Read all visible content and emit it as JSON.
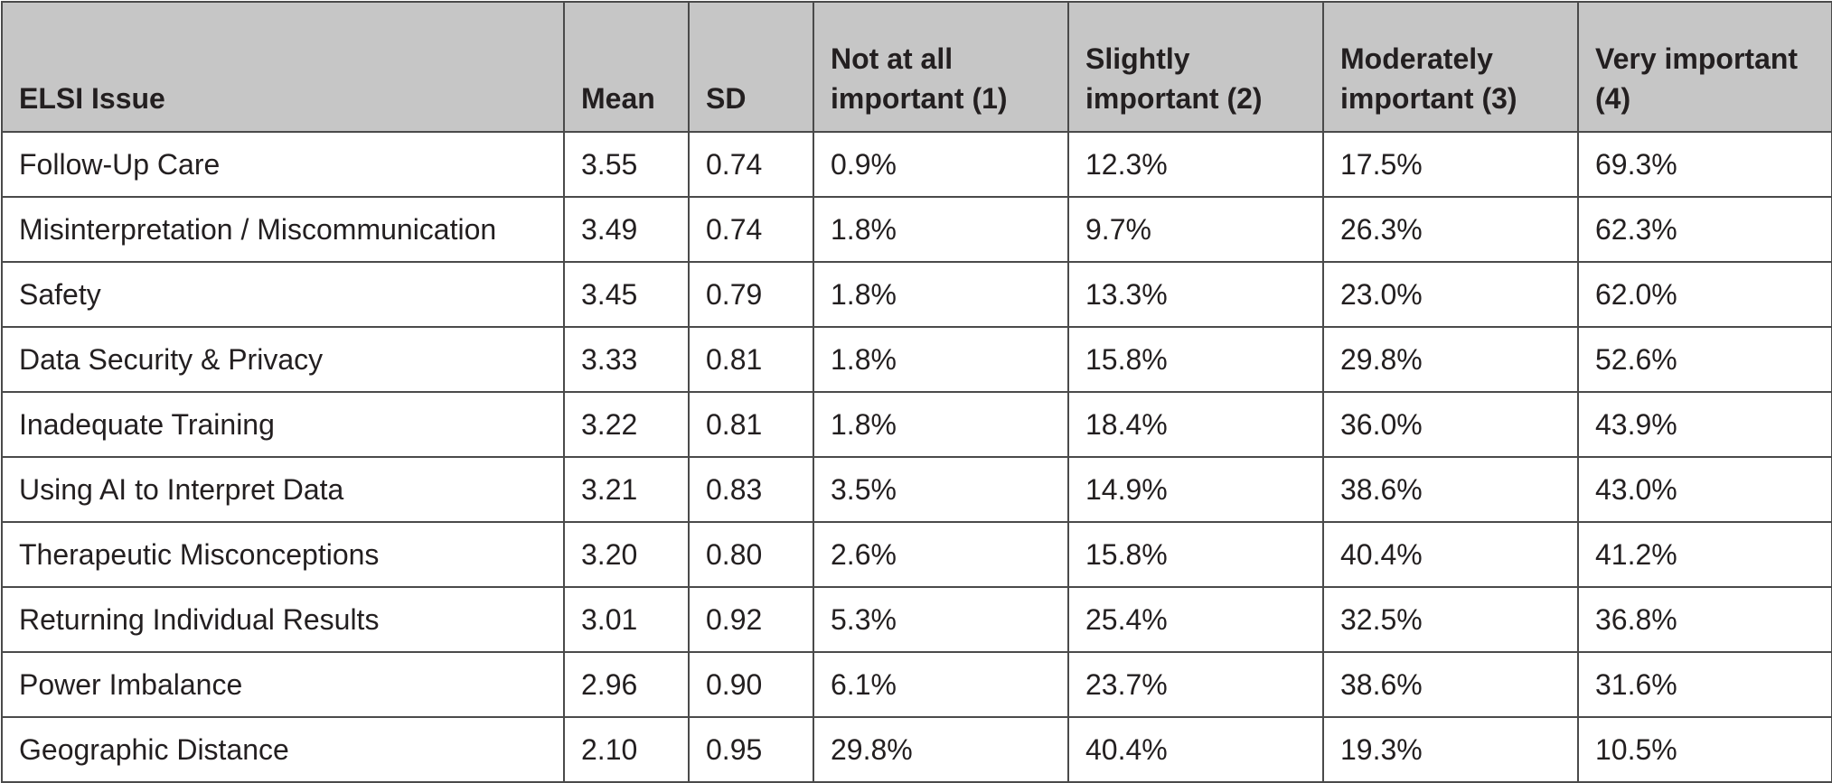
{
  "table": {
    "headers": [
      "ELSI Issue",
      "Mean",
      "SD",
      "Not at all important (1)",
      "Slightly important (2)",
      "Moderately important (3)",
      "Very important (4)"
    ],
    "rows": [
      [
        "Follow-Up Care",
        "3.55",
        "0.74",
        "0.9%",
        "12.3%",
        "17.5%",
        "69.3%"
      ],
      [
        "Misinterpretation / Miscommunication",
        "3.49",
        "0.74",
        "1.8%",
        "9.7%",
        "26.3%",
        "62.3%"
      ],
      [
        "Safety",
        "3.45",
        "0.79",
        "1.8%",
        "13.3%",
        "23.0%",
        "62.0%"
      ],
      [
        "Data Security & Privacy",
        "3.33",
        "0.81",
        "1.8%",
        "15.8%",
        "29.8%",
        "52.6%"
      ],
      [
        "Inadequate Training",
        "3.22",
        "0.81",
        "1.8%",
        "18.4%",
        "36.0%",
        "43.9%"
      ],
      [
        "Using AI to Interpret Data",
        "3.21",
        "0.83",
        "3.5%",
        "14.9%",
        "38.6%",
        "43.0%"
      ],
      [
        "Therapeutic Misconceptions",
        "3.20",
        "0.80",
        "2.6%",
        "15.8%",
        "40.4%",
        "41.2%"
      ],
      [
        "Returning Individual Results",
        "3.01",
        "0.92",
        "5.3%",
        "25.4%",
        "32.5%",
        "36.8%"
      ],
      [
        "Power Imbalance",
        "2.96",
        "0.90",
        "6.1%",
        "23.7%",
        "38.6%",
        "31.6%"
      ],
      [
        "Geographic Distance",
        "2.10",
        "0.95",
        "29.8%",
        "40.4%",
        "19.3%",
        "10.5%"
      ]
    ]
  },
  "colors": {
    "header_background": "#c6c6c6",
    "border": "#4a4a4a",
    "text": "#231f20"
  }
}
